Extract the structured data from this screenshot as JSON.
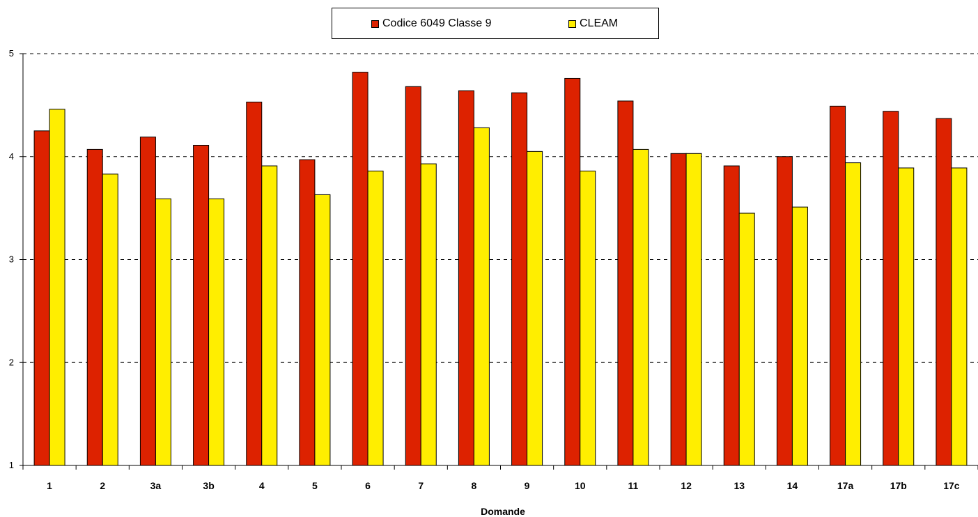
{
  "chart_data": {
    "type": "bar",
    "title": "",
    "xlabel": "Domande",
    "ylabel": "",
    "ylim": [
      1,
      5
    ],
    "yticks": [
      1,
      2,
      3,
      4,
      5
    ],
    "grid": true,
    "legend_position": "top",
    "categories": [
      "1",
      "2",
      "3a",
      "3b",
      "4",
      "5",
      "6",
      "7",
      "8",
      "9",
      "10",
      "11",
      "12",
      "13",
      "14",
      "17a",
      "17b",
      "17c"
    ],
    "series": [
      {
        "name": "Codice 6049 Classe 9",
        "color": "#dd2200",
        "values": [
          4.25,
          4.07,
          4.19,
          4.11,
          4.53,
          3.97,
          4.82,
          4.68,
          4.64,
          4.62,
          4.76,
          4.54,
          4.03,
          3.91,
          4.0,
          4.49,
          4.44,
          4.37
        ]
      },
      {
        "name": "CLEAM",
        "color": "#ffee00",
        "values": [
          4.46,
          3.83,
          3.59,
          3.59,
          3.91,
          3.63,
          3.86,
          3.93,
          4.28,
          4.05,
          3.86,
          4.07,
          4.03,
          3.45,
          3.51,
          3.94,
          3.89,
          3.89
        ]
      }
    ]
  }
}
